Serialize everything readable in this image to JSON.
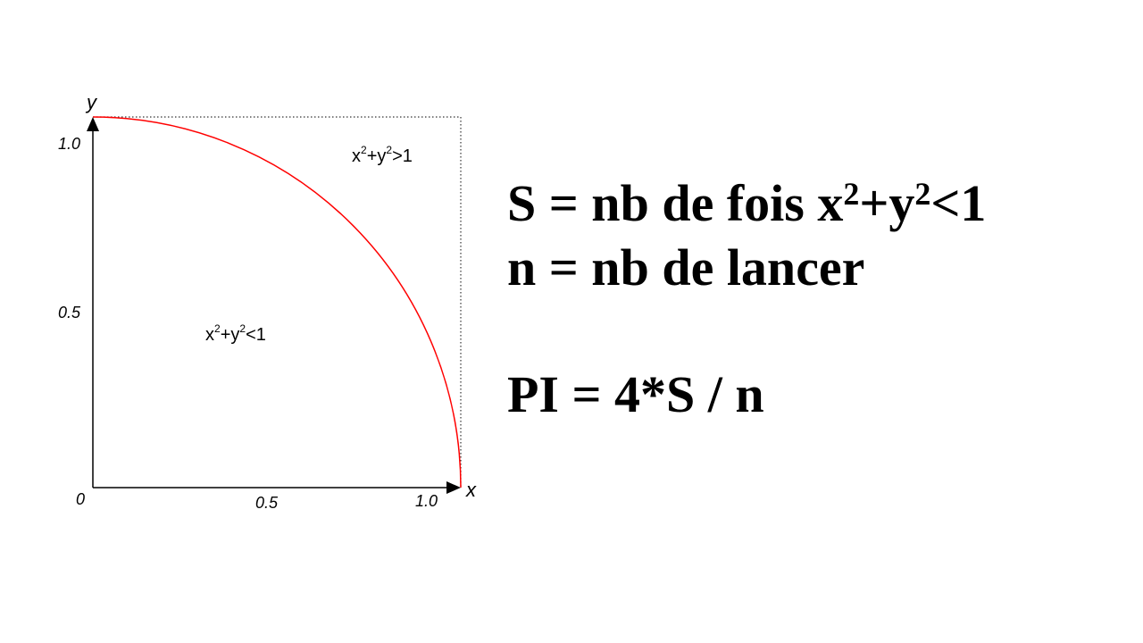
{
  "diagram": {
    "x_axis_name": "x",
    "y_axis_name": "y",
    "origin_label": "0",
    "x_ticks": [
      {
        "value": 0.5,
        "label": "0.5"
      },
      {
        "value": 1.0,
        "label": "1.0"
      }
    ],
    "y_ticks": [
      {
        "value": 0.5,
        "label": "0.5"
      },
      {
        "value": 1.0,
        "label": "1.0"
      }
    ],
    "inside_label": {
      "base1": "x",
      "sup1": "2",
      "mid": "+y",
      "sup2": "2",
      "tail": "<1"
    },
    "outside_label": {
      "base1": "x",
      "sup1": "2",
      "mid": "+y",
      "sup2": "2",
      "tail": ">1"
    },
    "arc_color": "#ff0000",
    "axis_color": "#000000"
  },
  "formulas": {
    "line1": {
      "prefix": "S = nb de fois x",
      "sup1": "2",
      "mid": "+y",
      "sup2": "2",
      "tail": "<1"
    },
    "line2": "n = nb de lancer",
    "line3": "PI = 4*S / n"
  }
}
